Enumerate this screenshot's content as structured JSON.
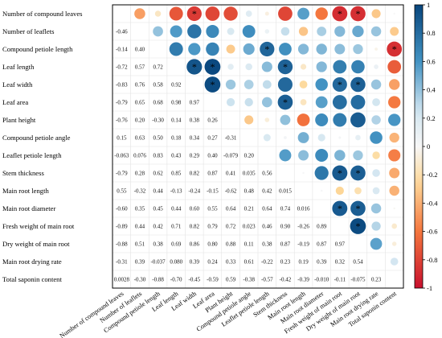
{
  "chart_data": {
    "type": "heatmap",
    "subtype": "correlation-matrix",
    "variables": [
      "Number of compound leaves",
      "Number of leaflets",
      "Compound petiole length",
      "Leaf length",
      "Leaf width",
      "Leaf area",
      "Plant height",
      "Compound petiole angle",
      "Leaflet petiole length",
      "Stem thickness",
      "Main root length",
      "Main root diameter",
      "Fresh weight of main root",
      "Dry weight of main root",
      "Main root drying rate",
      "Total saponin content"
    ],
    "lower_labels": [
      [],
      [
        "-0.46"
      ],
      [
        "-0.14",
        "0.40"
      ],
      [
        "-0.72",
        "0.57",
        "0.72"
      ],
      [
        "-0.83",
        "0.76",
        "0.58",
        "0.92"
      ],
      [
        "-0.79",
        "0.65",
        "0.68",
        "0.98",
        "0.97"
      ],
      [
        "-0.76",
        "0.20",
        "-0.30",
        "0.14",
        "0.38",
        "0.26"
      ],
      [
        "0.15",
        "0.63",
        "0.50",
        "0.18",
        "0.34",
        "0.27",
        "-0.31"
      ],
      [
        "-0.063",
        "0.076",
        "0.83",
        "0.43",
        "0.29",
        "0.40",
        "-0.079",
        "0.20"
      ],
      [
        "-0.79",
        "0.28",
        "0.62",
        "0.85",
        "0.82",
        "0.87",
        "0.41",
        "0.035",
        "0.56"
      ],
      [
        "0.55",
        "-0.32",
        "0.44",
        "-0.13",
        "-0.24",
        "-0.15",
        "-0.62",
        "0.48",
        "0.42",
        "0.015"
      ],
      [
        "-0.60",
        "0.35",
        "0.45",
        "0.44",
        "0.60",
        "0.55",
        "0.64",
        "0.21",
        "0.64",
        "0.74",
        "0.016"
      ],
      [
        "-0.89",
        "0.44",
        "0.42",
        "0.71",
        "0.82",
        "0.79",
        "0.72",
        "0.023",
        "0.46",
        "0.90",
        "-0.26",
        "0.89"
      ],
      [
        "-0.88",
        "0.51",
        "0.38",
        "0.69",
        "0.86",
        "0.80",
        "0.88",
        "0.11",
        "0.38",
        "0.87",
        "-0.19",
        "0.87",
        "0.97"
      ],
      [
        "-0.31",
        "0.39",
        "-0.037",
        "0.080",
        "0.39",
        "0.24",
        "0.33",
        "0.61",
        "-0.22",
        "0.23",
        "0.19",
        "0.39",
        "0.32",
        "0.54"
      ],
      [
        "0.0028",
        "-0.30",
        "-0.88",
        "-0.70",
        "-0.45",
        "-0.59",
        "0.59",
        "-0.38",
        "-0.57",
        "-0.42",
        "-0.39",
        "-0.010",
        "-0.11",
        "-0.075",
        "0.23"
      ]
    ],
    "upper_values": [
      [
        null,
        -0.46,
        -0.14,
        -0.72,
        -0.83,
        -0.79,
        -0.76,
        0.15,
        -0.063,
        -0.79,
        0.55,
        -0.6,
        -0.89,
        -0.88,
        -0.31,
        0.0028
      ],
      [
        null,
        null,
        0.4,
        0.57,
        0.76,
        0.65,
        0.2,
        0.63,
        0.076,
        0.28,
        -0.32,
        0.35,
        0.44,
        0.51,
        0.39,
        -0.3
      ],
      [
        null,
        null,
        null,
        0.72,
        0.58,
        0.68,
        -0.3,
        0.5,
        0.83,
        0.62,
        0.44,
        0.45,
        0.42,
        0.38,
        -0.037,
        -0.88
      ],
      [
        null,
        null,
        null,
        null,
        0.92,
        0.98,
        0.14,
        0.18,
        0.43,
        0.85,
        -0.13,
        0.44,
        0.71,
        0.69,
        0.08,
        -0.7
      ],
      [
        null,
        null,
        null,
        null,
        null,
        0.97,
        0.38,
        0.34,
        0.29,
        0.82,
        -0.24,
        0.6,
        0.82,
        0.86,
        0.39,
        -0.45
      ],
      [
        null,
        null,
        null,
        null,
        null,
        null,
        0.26,
        0.27,
        0.4,
        0.87,
        -0.15,
        0.55,
        0.79,
        0.8,
        0.24,
        -0.59
      ],
      [
        null,
        null,
        null,
        null,
        null,
        null,
        null,
        -0.31,
        -0.079,
        0.41,
        -0.62,
        0.64,
        0.72,
        0.88,
        0.33,
        0.59
      ],
      [
        null,
        null,
        null,
        null,
        null,
        null,
        null,
        null,
        0.2,
        0.035,
        0.48,
        0.21,
        0.023,
        0.11,
        0.61,
        -0.38
      ],
      [
        null,
        null,
        null,
        null,
        null,
        null,
        null,
        null,
        null,
        0.56,
        0.42,
        0.64,
        0.46,
        0.38,
        -0.22,
        -0.57
      ],
      [
        null,
        null,
        null,
        null,
        null,
        null,
        null,
        null,
        null,
        null,
        0.015,
        0.74,
        0.9,
        0.87,
        0.23,
        -0.42
      ],
      [
        null,
        null,
        null,
        null,
        null,
        null,
        null,
        null,
        null,
        null,
        null,
        0.016,
        -0.26,
        -0.19,
        0.19,
        -0.39
      ],
      [
        null,
        null,
        null,
        null,
        null,
        null,
        null,
        null,
        null,
        null,
        null,
        null,
        0.89,
        0.87,
        0.39,
        -0.01
      ],
      [
        null,
        null,
        null,
        null,
        null,
        null,
        null,
        null,
        null,
        null,
        null,
        null,
        null,
        0.97,
        0.32,
        -0.11
      ],
      [
        null,
        null,
        null,
        null,
        null,
        null,
        null,
        null,
        null,
        null,
        null,
        null,
        null,
        null,
        0.54,
        -0.075
      ],
      [
        null,
        null,
        null,
        null,
        null,
        null,
        null,
        null,
        null,
        null,
        null,
        null,
        null,
        null,
        null,
        0.23
      ],
      [
        null,
        null,
        null,
        null,
        null,
        null,
        null,
        null,
        null,
        null,
        null,
        null,
        null,
        null,
        null,
        null
      ]
    ],
    "significance_marks": [
      [
        0,
        4
      ],
      [
        0,
        12
      ],
      [
        0,
        13
      ],
      [
        2,
        8
      ],
      [
        2,
        15
      ],
      [
        3,
        4
      ],
      [
        3,
        5
      ],
      [
        3,
        9
      ],
      [
        4,
        5
      ],
      [
        4,
        12
      ],
      [
        4,
        13
      ],
      [
        5,
        9
      ],
      [
        9,
        12
      ],
      [
        9,
        13
      ],
      [
        11,
        12
      ],
      [
        11,
        13
      ],
      [
        12,
        13
      ]
    ],
    "significance_symbol": "*",
    "colorbar": {
      "range": [
        -1,
        1
      ],
      "ticks": [
        "1",
        "0.8",
        "0.6",
        "0.4",
        "0.2",
        "0",
        "-0.2",
        "-0.4",
        "-0.6",
        "-0.8",
        "-1"
      ]
    },
    "colors": {
      "positive_strong": "#08457c",
      "positive_mid": "#4393c3",
      "positive_light": "#d1e5f0",
      "neutral": "#f7f7f7",
      "negative_light": "#fdd99a",
      "negative_mid": "#f4763e",
      "negative_strong": "#c8102e"
    }
  }
}
